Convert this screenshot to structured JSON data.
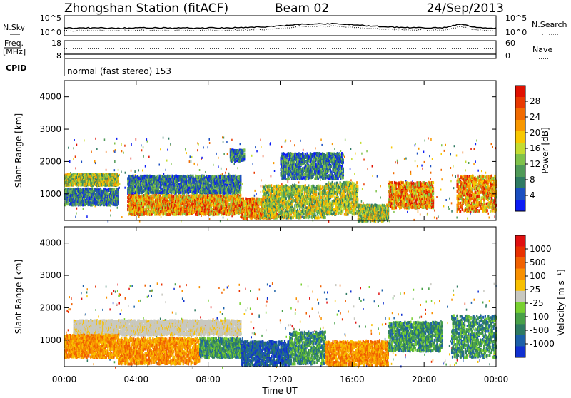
{
  "header": {
    "station": "Zhongshan Station (fitACF)",
    "beam": "Beam 02",
    "date": "24/Sep/2013"
  },
  "noise_panel": {
    "left_label": "N.Sky",
    "left_ticks": [
      "10^5",
      "10^0"
    ],
    "right_ticks": [
      "10^5",
      "10^0"
    ],
    "right_label": "N.Search"
  },
  "freq_panel": {
    "left_label_line1": "Freq.",
    "left_label_line2": "[MHz]",
    "left_ticks": [
      "18",
      "8"
    ],
    "right_ticks": [
      "60",
      "0"
    ],
    "right_label": "Nave"
  },
  "cpid_panel": {
    "label": "CPID",
    "text": "normal (fast stereo) 153"
  },
  "x_axis": {
    "title": "Time UT",
    "tick_labels": [
      "00:00",
      "04:00",
      "08:00",
      "12:00",
      "16:00",
      "20:00",
      "00:00"
    ],
    "tick_hours": [
      0,
      4,
      8,
      12,
      16,
      20,
      24
    ]
  },
  "chart_data": [
    {
      "type": "heatmap",
      "name": "power",
      "ylabel": "Slant Range [km]",
      "ylim": [
        180,
        4500
      ],
      "y_ticks": [
        "1000",
        "2000",
        "3000",
        "4000"
      ],
      "y_tick_values": [
        1000,
        2000,
        3000,
        4000
      ],
      "xlim_hours": [
        0,
        24
      ],
      "colorbar": {
        "label": "Power [dB]",
        "ticks": [
          "4",
          "8",
          "12",
          "16",
          "20",
          "24",
          "28"
        ],
        "colors": [
          "#0c1cf5",
          "#1a4ec0",
          "#2e7a62",
          "#4f9a58",
          "#7fc24a",
          "#c4dc30",
          "#f8c800",
          "#f89800",
          "#f06a00",
          "#e83800",
          "#e01000"
        ]
      },
      "regions_hours_km": [
        {
          "t": [
            0.0,
            3.0
          ],
          "r": [
            1300,
            1650
          ],
          "level": "mid"
        },
        {
          "t": [
            0.0,
            3.0
          ],
          "r": [
            700,
            1200
          ],
          "level": "low"
        },
        {
          "t": [
            3.5,
            9.8
          ],
          "r": [
            1050,
            1600
          ],
          "level": "low"
        },
        {
          "t": [
            3.5,
            9.8
          ],
          "r": [
            400,
            1000
          ],
          "level": "high"
        },
        {
          "t": [
            9.8,
            11.8
          ],
          "r": [
            280,
            900
          ],
          "level": "high"
        },
        {
          "t": [
            11.0,
            14.5
          ],
          "r": [
            300,
            1300
          ],
          "level": "mid"
        },
        {
          "t": [
            14.5,
            16.3
          ],
          "r": [
            400,
            1400
          ],
          "level": "mid"
        },
        {
          "t": [
            16.3,
            18.0
          ],
          "r": [
            200,
            700
          ],
          "level": "mid"
        },
        {
          "t": [
            18.0,
            20.5
          ],
          "r": [
            600,
            1400
          ],
          "level": "high"
        },
        {
          "t": [
            21.8,
            24.0
          ],
          "r": [
            500,
            1600
          ],
          "level": "high"
        },
        {
          "t": [
            12.0,
            15.5
          ],
          "r": [
            1500,
            2300
          ],
          "level": "low"
        },
        {
          "t": [
            9.2,
            10.0
          ],
          "r": [
            2050,
            2400
          ],
          "level": "low"
        }
      ]
    },
    {
      "type": "heatmap",
      "name": "velocity",
      "ylabel": "Slant Range [km]",
      "ylim": [
        180,
        4500
      ],
      "y_ticks": [
        "1000",
        "2000",
        "3000",
        "4000"
      ],
      "y_tick_values": [
        1000,
        2000,
        3000,
        4000
      ],
      "xlim_hours": [
        0,
        24
      ],
      "colorbar": {
        "label": "Velocity [m s⁻¹]",
        "ticks": [
          "1000",
          "500",
          "100",
          "25",
          "-25",
          "-100",
          "-500",
          "-1000"
        ],
        "colors": [
          "#1030d0",
          "#1c60a8",
          "#2e7a62",
          "#48a048",
          "#78d030",
          "#c8c8c0",
          "#f8c000",
          "#f89000",
          "#f06000",
          "#e83000",
          "#e01010"
        ]
      },
      "regions_hours_km": [
        {
          "t": [
            0.5,
            9.8
          ],
          "r": [
            1200,
            1650
          ],
          "level": "grey"
        },
        {
          "t": [
            0.0,
            3.0
          ],
          "r": [
            500,
            1200
          ],
          "level": "orange"
        },
        {
          "t": [
            3.0,
            7.5
          ],
          "r": [
            300,
            1100
          ],
          "level": "orange"
        },
        {
          "t": [
            7.5,
            9.8
          ],
          "r": [
            500,
            1100
          ],
          "level": "green"
        },
        {
          "t": [
            9.8,
            12.5
          ],
          "r": [
            250,
            1000
          ],
          "level": "blue"
        },
        {
          "t": [
            12.5,
            14.5
          ],
          "r": [
            300,
            1300
          ],
          "level": "green"
        },
        {
          "t": [
            14.5,
            18.0
          ],
          "r": [
            250,
            1000
          ],
          "level": "orange"
        },
        {
          "t": [
            18.0,
            21.0
          ],
          "r": [
            700,
            1600
          ],
          "level": "green"
        },
        {
          "t": [
            21.5,
            24.0
          ],
          "r": [
            500,
            1800
          ],
          "level": "green"
        }
      ]
    }
  ]
}
